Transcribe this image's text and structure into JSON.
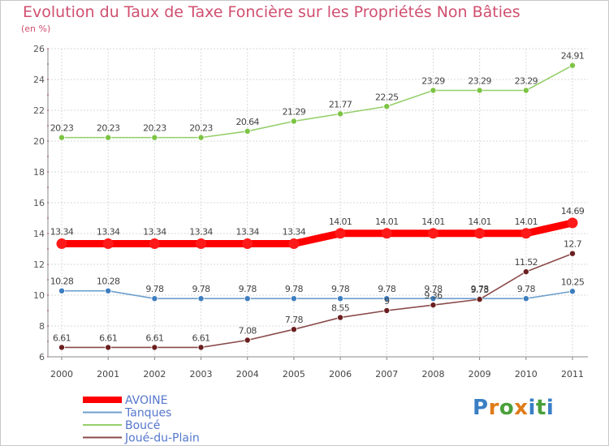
{
  "header": {
    "title": "Evolution du Taux de Taxe Foncière sur les Propriétés Non Bâties",
    "unit": "(en %)"
  },
  "logo": {
    "text": [
      "P",
      "r",
      "o",
      "x",
      "i",
      "t",
      "i"
    ],
    "colors": [
      "#3a7fc4",
      "#e07b18",
      "#4aa03a",
      "#e07b18",
      "#3a7fc4",
      "#4aa03a",
      "#3a7fc4"
    ]
  },
  "chart_data": {
    "type": "line",
    "title": "Evolution du Taux de Taxe Foncière sur les Propriétés Non Bâties",
    "ylabel": "(en %)",
    "xlabel": "",
    "categories": [
      "2000",
      "2001",
      "2002",
      "2003",
      "2004",
      "2005",
      "2006",
      "2007",
      "2008",
      "2009",
      "2010",
      "2011"
    ],
    "ylim": [
      6,
      26
    ],
    "yticks": [
      6,
      8,
      10,
      12,
      14,
      16,
      18,
      20,
      22,
      24,
      26
    ],
    "grid": true,
    "legend_position": "bottom-left",
    "series": [
      {
        "name": "AVOINE",
        "color": "#ff0000",
        "marker_color": "#ff1a1a",
        "highlight": true,
        "values": [
          13.34,
          13.34,
          13.34,
          13.34,
          13.34,
          13.34,
          14.01,
          14.01,
          14.01,
          14.01,
          14.01,
          14.69
        ],
        "labels": [
          "13.34",
          "13.34",
          "13.34",
          "13.34",
          "13.34",
          "13.34",
          "14.01",
          "14.01",
          "14.01",
          "14.01",
          "14.01",
          "14.69"
        ]
      },
      {
        "name": "Tanques",
        "color": "#6d9fcc",
        "marker_color": "#3d7ec0",
        "highlight": false,
        "values": [
          10.28,
          10.28,
          9.78,
          9.78,
          9.78,
          9.78,
          9.78,
          9.78,
          9.78,
          9.78,
          9.78,
          10.25
        ],
        "labels": [
          "10.28",
          "10.28",
          "9.78",
          "9.78",
          "9.78",
          "9.78",
          "9.78",
          "9.78",
          "9.78",
          "9.78",
          "9.78",
          "10.25"
        ]
      },
      {
        "name": "Boucé",
        "color": "#95cf6a",
        "marker_color": "#7cc443",
        "highlight": false,
        "values": [
          20.23,
          20.23,
          20.23,
          20.23,
          20.64,
          21.29,
          21.77,
          22.25,
          23.29,
          23.29,
          23.29,
          24.91
        ],
        "labels": [
          "20.23",
          "20.23",
          "20.23",
          "20.23",
          "20.64",
          "21.29",
          "21.77",
          "22.25",
          "23.29",
          "23.29",
          "23.29",
          "24.91"
        ]
      },
      {
        "name": "Joué-du-Plain",
        "color": "#8a4a4a",
        "marker_color": "#6b1f1f",
        "highlight": false,
        "values": [
          6.61,
          6.61,
          6.61,
          6.61,
          7.08,
          7.78,
          8.55,
          9.0,
          9.36,
          9.73,
          11.52,
          12.7
        ],
        "labels": [
          "6.61",
          "6.61",
          "6.61",
          "6.61",
          "7.08",
          "7.78",
          "8.55",
          "9",
          "9.36",
          "9.73",
          "11.52",
          "12.7"
        ]
      }
    ]
  }
}
